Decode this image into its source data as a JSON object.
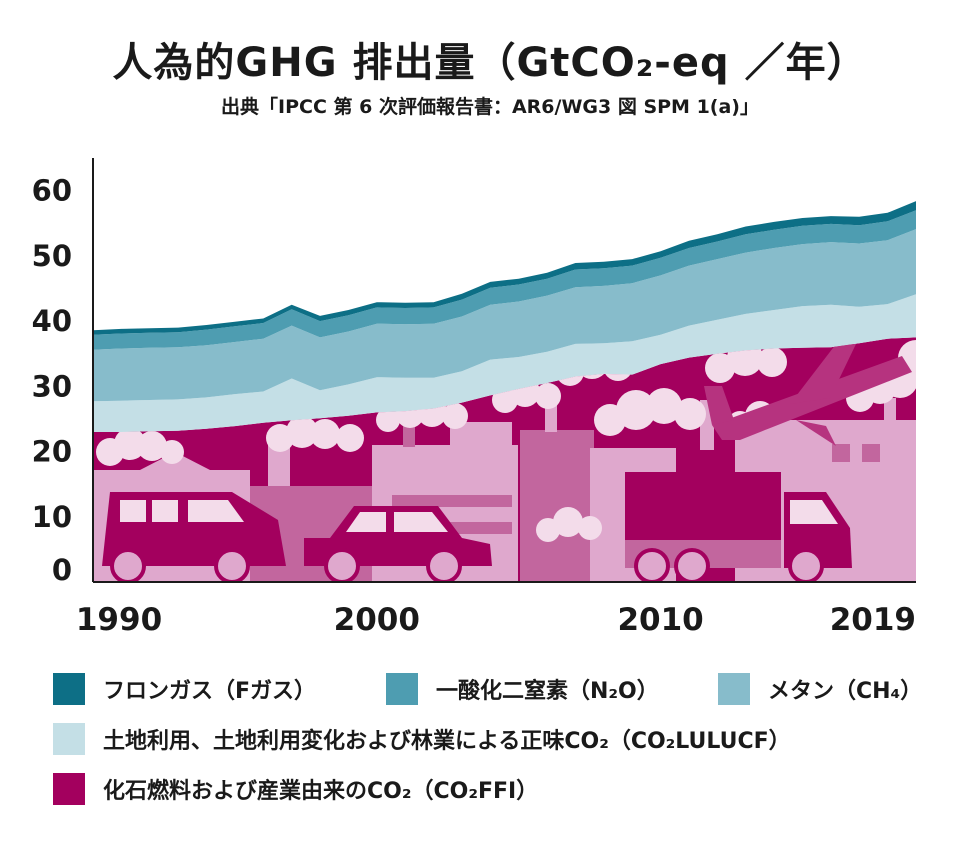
{
  "header": {
    "title": "人為的GHG 排出量（GtCO₂-eq ／年）",
    "subtitle": "出典「IPCC 第 6 次評価報告書：AR6/WG3 図 SPM 1(a)」"
  },
  "colors": {
    "fgas": "#0d6f86",
    "n2o": "#4e9db1",
    "ch4": "#87bccb",
    "lulucf": "#c4dfe6",
    "ffi": "#a3005e",
    "ffi_light": "#dfa8cd",
    "ffi_pale": "#f3dcea"
  },
  "chart_data": {
    "type": "area",
    "stacked": true,
    "x": [
      1990,
      1991,
      1992,
      1993,
      1994,
      1995,
      1996,
      1997,
      1998,
      1999,
      2000,
      2001,
      2002,
      2003,
      2004,
      2005,
      2006,
      2007,
      2008,
      2009,
      2010,
      2011,
      2012,
      2013,
      2014,
      2015,
      2016,
      2017,
      2018,
      2019
    ],
    "xticks": [
      "1990",
      "2000",
      "2010",
      "2019"
    ],
    "xtick_values": [
      1990,
      2000,
      2010,
      2019
    ],
    "ylim": [
      0,
      65
    ],
    "yticks": [
      "0",
      "10",
      "20",
      "30",
      "40",
      "50",
      "60"
    ],
    "ytick_values": [
      0,
      10,
      20,
      30,
      40,
      50,
      60
    ],
    "series": [
      {
        "name": "化石燃料および産業由来のCO₂（CO₂FFI）",
        "key": "ffi",
        "values": [
          23.0,
          23.0,
          23.1,
          23.2,
          23.5,
          23.9,
          24.4,
          24.8,
          25.1,
          25.5,
          26.0,
          26.2,
          26.6,
          27.5,
          28.6,
          29.6,
          30.5,
          31.5,
          31.9,
          31.8,
          33.4,
          34.4,
          35.0,
          35.5,
          35.8,
          35.9,
          36.0,
          36.6,
          37.3,
          37.5
        ]
      },
      {
        "name": "土地利用、土地利用変化および林業による正味CO₂（CO₂LULUCF）",
        "key": "lulucf",
        "values": [
          4.7,
          4.8,
          4.8,
          4.8,
          4.8,
          4.9,
          4.8,
          6.4,
          4.3,
          4.8,
          5.4,
          5.1,
          4.7,
          4.8,
          5.5,
          4.9,
          4.8,
          5.0,
          4.7,
          5.1,
          4.5,
          4.9,
          5.2,
          5.6,
          5.9,
          6.4,
          6.5,
          5.6,
          5.3,
          6.6
        ]
      },
      {
        "name": "メタン（CH₄）",
        "key": "ch4",
        "values": [
          7.9,
          8.0,
          8.0,
          8.0,
          8.0,
          8.0,
          8.1,
          8.1,
          8.1,
          8.1,
          8.2,
          8.2,
          8.3,
          8.4,
          8.4,
          8.5,
          8.6,
          8.7,
          8.8,
          8.9,
          9.1,
          9.2,
          9.3,
          9.4,
          9.5,
          9.5,
          9.6,
          9.7,
          9.8,
          10.0
        ]
      },
      {
        "name": "一酸化二窒素（N₂O）",
        "key": "n2o",
        "values": [
          2.3,
          2.3,
          2.3,
          2.3,
          2.4,
          2.4,
          2.4,
          2.5,
          2.5,
          2.5,
          2.5,
          2.5,
          2.5,
          2.6,
          2.6,
          2.6,
          2.6,
          2.7,
          2.7,
          2.7,
          2.7,
          2.7,
          2.7,
          2.8,
          2.8,
          2.8,
          2.8,
          2.8,
          2.9,
          2.9
        ]
      },
      {
        "name": "フロンガス（Fガス）",
        "key": "fgas",
        "values": [
          0.7,
          0.7,
          0.7,
          0.7,
          0.7,
          0.7,
          0.7,
          0.7,
          0.8,
          0.8,
          0.8,
          0.8,
          0.8,
          0.9,
          0.9,
          0.9,
          0.9,
          1.0,
          1.0,
          1.0,
          1.0,
          1.1,
          1.1,
          1.2,
          1.2,
          1.2,
          1.2,
          1.3,
          1.3,
          1.4
        ]
      }
    ],
    "legend_position": "bottom",
    "grid": false
  },
  "legend": [
    {
      "key": "fgas",
      "label": "フロンガス（Fガス）"
    },
    {
      "key": "n2o",
      "label": "一酸化二窒素（N₂O）"
    },
    {
      "key": "ch4",
      "label": "メタン（CH₄）"
    },
    {
      "key": "lulucf",
      "label": "土地利用、土地利用変化および林業による正味CO₂（CO₂LULUCF）"
    },
    {
      "key": "ffi",
      "label": "化石燃料および産業由来のCO₂（CO₂FFI）"
    }
  ]
}
